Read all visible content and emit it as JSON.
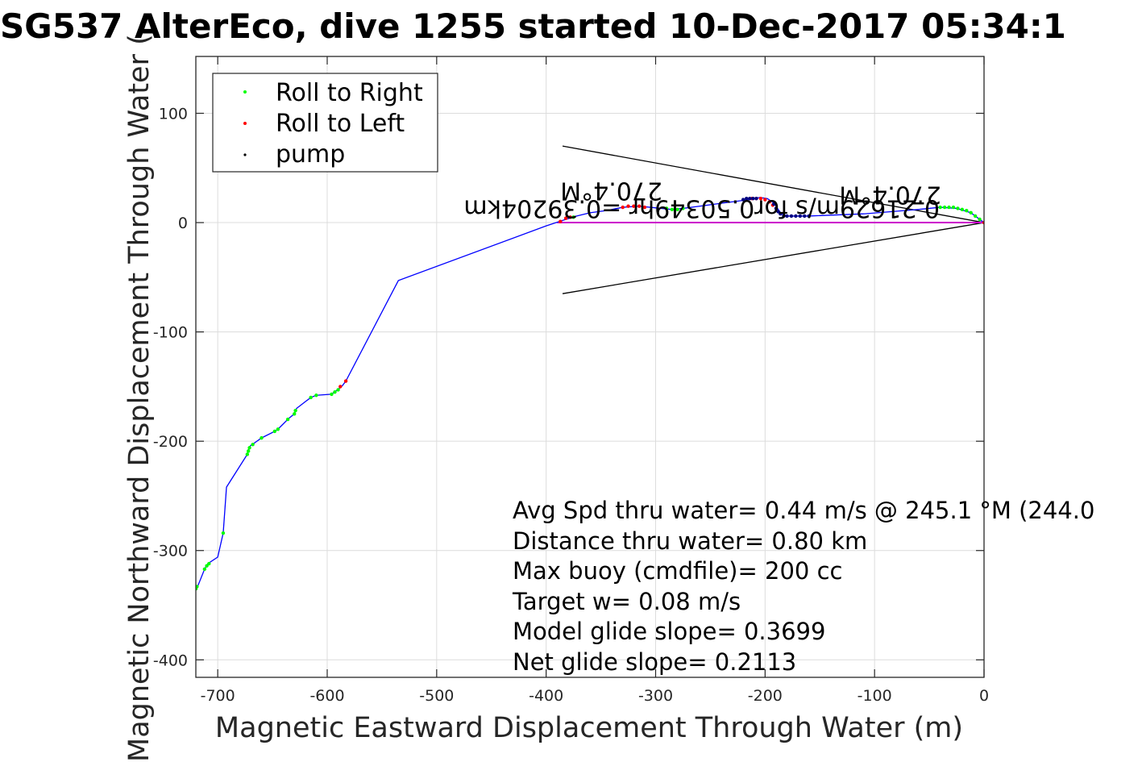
{
  "chart_data": {
    "type": "scatter",
    "title": "SG537 AlterEco, dive 1255 started 10-Dec-2017 05:34:1",
    "xlabel": "Magnetic Eastward Displacement Through Water (m)",
    "ylabel": "Magnetic Northward Displacement Through Water (",
    "xlim": [
      -720,
      0
    ],
    "ylim": [
      -416,
      152
    ],
    "xticks": [
      -700,
      -600,
      -500,
      -400,
      -300,
      -200,
      -100,
      0
    ],
    "xtick_labels": [
      "-700",
      "-600",
      "-500",
      "-400",
      "-300",
      "-200",
      "-100",
      "0"
    ],
    "yticks": [
      100,
      0,
      -100,
      -200,
      -300,
      -400
    ],
    "ytick_labels": [
      "100",
      "0",
      "-100",
      "-200",
      "-300",
      "-400"
    ],
    "grid": true,
    "legend": {
      "placement": "top-left",
      "entries": [
        {
          "label": "Roll to Right",
          "color": "#00ff00"
        },
        {
          "label": "Roll to Left",
          "color": "#ff0000"
        },
        {
          "label": "pump",
          "color": "#000000"
        }
      ]
    },
    "track_color": "#0000ff",
    "current_color": "#cc00cc",
    "series": [
      {
        "name": "track",
        "points": [
          [
            -720,
            -335
          ],
          [
            -718,
            -332
          ],
          [
            -712,
            -317
          ],
          [
            -709,
            -312
          ],
          [
            -700,
            -306
          ],
          [
            -695,
            -284
          ],
          [
            -692,
            -242
          ],
          [
            -673,
            -212
          ],
          [
            -672,
            -208
          ],
          [
            -670,
            -204
          ],
          [
            -667,
            -202
          ],
          [
            -660,
            -197
          ],
          [
            -648,
            -191
          ],
          [
            -645,
            -189
          ],
          [
            -640,
            -184
          ],
          [
            -635,
            -179
          ],
          [
            -630,
            -175
          ],
          [
            -628,
            -170
          ],
          [
            -615,
            -160
          ],
          [
            -610,
            -158
          ],
          [
            -596,
            -157
          ],
          [
            -592,
            -154
          ],
          [
            -588,
            -151
          ],
          [
            -586,
            -149
          ],
          [
            -583,
            -145
          ],
          [
            -535,
            -53
          ],
          [
            -400,
            -3
          ],
          [
            -385,
            2
          ],
          [
            -372,
            6
          ],
          [
            -360,
            9
          ],
          [
            -345,
            11
          ],
          [
            -330,
            14
          ],
          [
            -315,
            15
          ],
          [
            -305,
            14
          ],
          [
            -285,
            12
          ],
          [
            -275,
            13
          ],
          [
            -260,
            15
          ],
          [
            -215,
            21
          ],
          [
            -205,
            23
          ],
          [
            -198,
            22
          ],
          [
            -192,
            18
          ],
          [
            -188,
            12
          ],
          [
            -185,
            8
          ],
          [
            -180,
            6
          ],
          [
            -170,
            6
          ],
          [
            -160,
            6
          ],
          [
            -110,
            8
          ],
          [
            -60,
            12
          ],
          [
            -40,
            14
          ],
          [
            -25,
            13
          ],
          [
            -12,
            9
          ],
          [
            0,
            0
          ]
        ]
      },
      {
        "name": "Roll to Right",
        "points": [
          [
            -720,
            -335
          ],
          [
            -719,
            -333
          ],
          [
            -712,
            -317
          ],
          [
            -710,
            -314
          ],
          [
            -708,
            -312
          ],
          [
            -695,
            -284
          ],
          [
            -673,
            -212
          ],
          [
            -672,
            -209
          ],
          [
            -671,
            -206
          ],
          [
            -668,
            -203
          ],
          [
            -660,
            -197
          ],
          [
            -648,
            -191
          ],
          [
            -645,
            -189
          ],
          [
            -636,
            -180
          ],
          [
            -630,
            -175
          ],
          [
            -629,
            -172
          ],
          [
            -615,
            -160
          ],
          [
            -610,
            -158
          ],
          [
            -596,
            -157
          ],
          [
            -593,
            -155
          ],
          [
            -590,
            -153
          ],
          [
            -375,
            5
          ],
          [
            -290,
            13
          ],
          [
            -285,
            12
          ],
          [
            -280,
            12
          ],
          [
            -275,
            13
          ],
          [
            -40,
            14
          ],
          [
            -36,
            14
          ],
          [
            -32,
            14
          ],
          [
            -28,
            14
          ],
          [
            -24,
            13
          ],
          [
            -20,
            12
          ],
          [
            -16,
            11
          ],
          [
            -12,
            9
          ],
          [
            -8,
            6
          ],
          [
            -4,
            3
          ]
        ]
      },
      {
        "name": "Roll to Left",
        "points": [
          [
            -588,
            -150
          ],
          [
            -583,
            -145
          ],
          [
            -387,
            1
          ],
          [
            -382,
            4
          ],
          [
            -378,
            5
          ],
          [
            -330,
            14
          ],
          [
            -325,
            15
          ],
          [
            -320,
            15
          ],
          [
            -315,
            15
          ],
          [
            -310,
            14
          ],
          [
            -212,
            22
          ],
          [
            -208,
            22
          ],
          [
            -204,
            22
          ],
          [
            -200,
            21
          ],
          [
            -196,
            19
          ],
          [
            -193,
            16
          ],
          [
            0,
            0
          ]
        ]
      },
      {
        "name": "pump",
        "points": [
          [
            -220,
            21
          ],
          [
            -217,
            22
          ],
          [
            -214,
            22
          ],
          [
            -211,
            22
          ],
          [
            -208,
            22
          ],
          [
            -192,
            17
          ],
          [
            -190,
            13
          ],
          [
            -188,
            10
          ],
          [
            -186,
            8
          ],
          [
            -183,
            6
          ],
          [
            -180,
            6
          ],
          [
            -176,
            6
          ],
          [
            -172,
            6
          ],
          [
            -168,
            6
          ],
          [
            -164,
            6
          ],
          [
            -160,
            6
          ]
        ]
      },
      {
        "name": "current",
        "points": [
          [
            -390,
            0
          ],
          [
            0,
            0
          ]
        ]
      }
    ],
    "cone_lines": [
      [
        [
          -385,
          70
        ],
        [
          0,
          0
        ]
      ],
      [
        [
          -385,
          -65
        ],
        [
          0,
          0
        ]
      ]
    ],
    "annotations": {
      "flipped": [
        "0.21629m/s for0.50349hr =0.39204km",
        "270.4°M",
        "270.4°M"
      ],
      "info": [
        "Avg Spd thru water=  0.44 m/s @ 245.1 °M (244.0",
        "Distance thru water=  0.80 km",
        "Max buoy (cmdfile)= 200 cc",
        "Target w= 0.08 m/s",
        "Model glide slope= 0.3699",
        "Net glide slope= 0.2113"
      ]
    }
  }
}
